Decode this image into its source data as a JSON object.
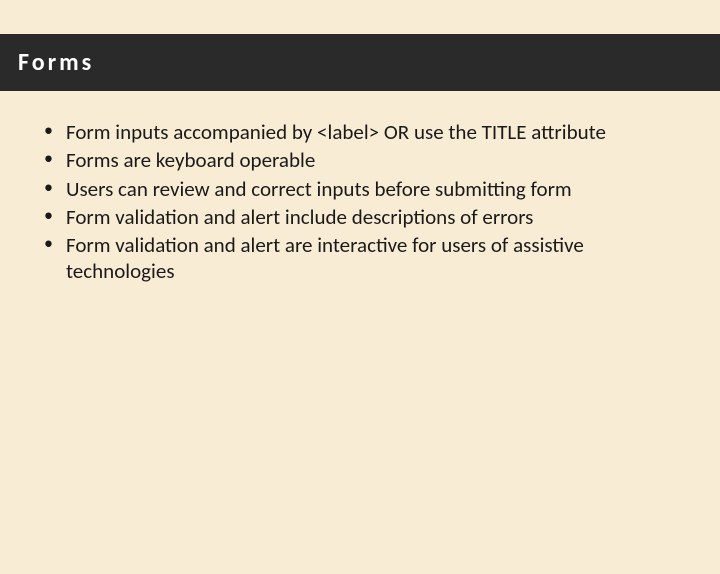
{
  "slide": {
    "title": "Forms",
    "bullets": [
      "Form inputs accompanied by <label> OR use the TITLE attribute",
      "Forms are keyboard operable",
      "Users can review and correct inputs before submitting form",
      "Form validation and alert include descriptions of errors",
      "Form validation and alert are interactive for users of assistive technologies"
    ],
    "colors": {
      "background": "#f9ecd5",
      "header_bar": "#2a2a2a",
      "header_text": "#ffffff",
      "body_text": "#1a1a1a"
    },
    "typography": {
      "title_fontsize": 24,
      "title_weight": "bold",
      "title_letter_spacing": 3,
      "body_fontsize": 21
    }
  }
}
